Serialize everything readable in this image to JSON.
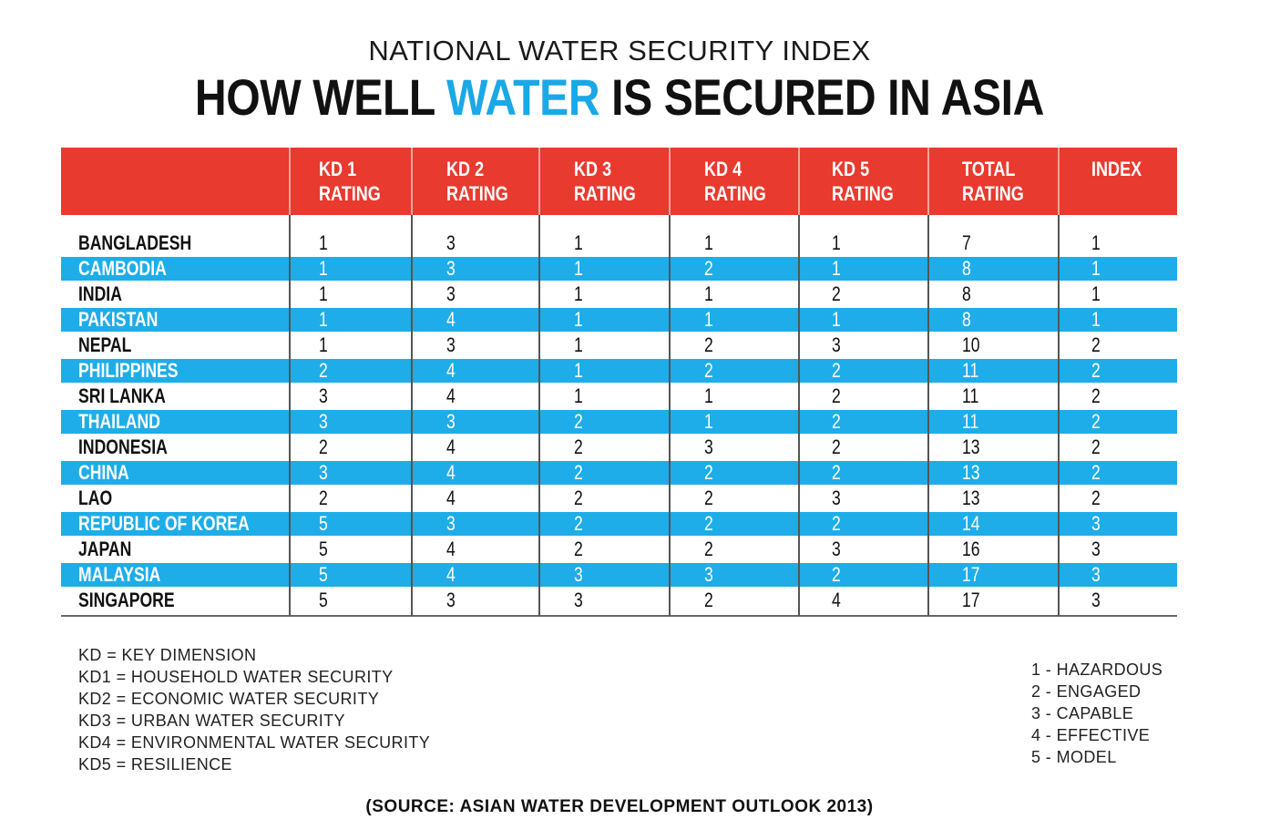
{
  "header": {
    "supertitle": "NATIONAL WATER SECURITY INDEX",
    "title_pre": "HOW WELL ",
    "title_accent": "WATER",
    "title_post": " IS SECURED IN ASIA"
  },
  "colors": {
    "header_red": "#e83a2f",
    "stripe_blue": "#1eade8",
    "accent_blue": "#1ba8e6"
  },
  "table": {
    "columns": [
      {
        "line1": "",
        "line2": ""
      },
      {
        "line1": "KD 1",
        "line2": "RATING"
      },
      {
        "line1": "KD 2",
        "line2": "RATING"
      },
      {
        "line1": "KD 3",
        "line2": "RATING"
      },
      {
        "line1": "KD 4",
        "line2": "RATING"
      },
      {
        "line1": "KD 5",
        "line2": "RATING"
      },
      {
        "line1": "TOTAL",
        "line2": "RATING"
      },
      {
        "line1": "INDEX",
        "line2": ""
      }
    ],
    "rows": [
      [
        "BANGLADESH",
        "1",
        "3",
        "1",
        "1",
        "1",
        "7",
        "1"
      ],
      [
        "CAMBODIA",
        "1",
        "3",
        "1",
        "2",
        "1",
        "8",
        "1"
      ],
      [
        "INDIA",
        "1",
        "3",
        "1",
        "1",
        "2",
        "8",
        "1"
      ],
      [
        "PAKISTAN",
        "1",
        "4",
        "1",
        "1",
        "1",
        "8",
        "1"
      ],
      [
        "NEPAL",
        "1",
        "3",
        "1",
        "2",
        "3",
        "10",
        "2"
      ],
      [
        "PHILIPPINES",
        "2",
        "4",
        "1",
        "2",
        "2",
        "11",
        "2"
      ],
      [
        "SRI LANKA",
        "3",
        "4",
        "1",
        "1",
        "2",
        "11",
        "2"
      ],
      [
        "THAILAND",
        "3",
        "3",
        "2",
        "1",
        "2",
        "11",
        "2"
      ],
      [
        "INDONESIA",
        "2",
        "4",
        "2",
        "3",
        "2",
        "13",
        "2"
      ],
      [
        "CHINA",
        "3",
        "4",
        "2",
        "2",
        "2",
        "13",
        "2"
      ],
      [
        "LAO",
        "2",
        "4",
        "2",
        "2",
        "3",
        "13",
        "2"
      ],
      [
        "REPUBLIC OF KOREA",
        "5",
        "3",
        "2",
        "2",
        "2",
        "14",
        "3"
      ],
      [
        "JAPAN",
        "5",
        "4",
        "2",
        "2",
        "3",
        "16",
        "3"
      ],
      [
        "MALAYSIA",
        "5",
        "4",
        "3",
        "3",
        "2",
        "17",
        "3"
      ],
      [
        "SINGAPORE",
        "5",
        "3",
        "3",
        "2",
        "4",
        "17",
        "3"
      ]
    ]
  },
  "legend_left": [
    "KD  =  KEY DIMENSION",
    "KD1 = HOUSEHOLD WATER SECURITY",
    "KD2 = ECONOMIC WATER SECURITY",
    "KD3 = URBAN WATER SECURITY",
    "KD4 = ENVIRONMENTAL WATER SECURITY",
    "KD5 = RESILIENCE"
  ],
  "legend_right": [
    "1 - HAZARDOUS",
    "2 - ENGAGED",
    "3 - CAPABLE",
    "4 - EFFECTIVE",
    "5 - MODEL"
  ],
  "source": "(SOURCE: ASIAN WATER DEVELOPMENT OUTLOOK 2013)"
}
